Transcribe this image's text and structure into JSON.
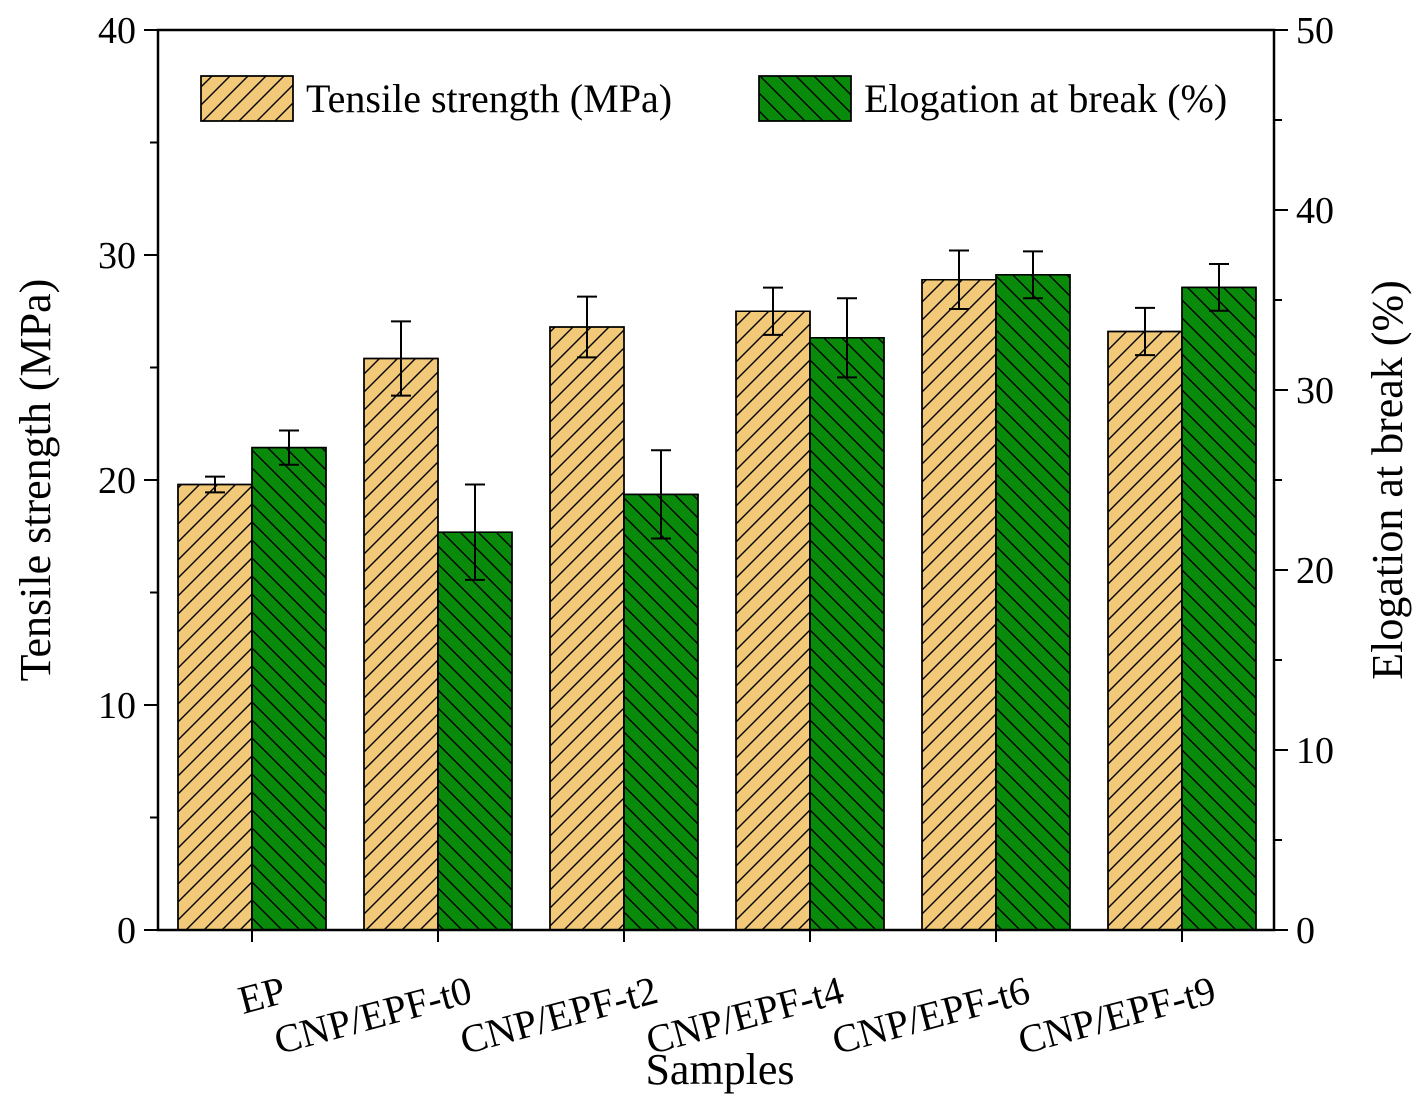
{
  "chart_data": {
    "type": "bar",
    "xlabel": "Samples",
    "ylabel_left": "Tensile strength (MPa)",
    "ylabel_right": "Elogation at break (%)",
    "categories": [
      "EP",
      "CNP/EPF-t0",
      "CNP/EPF-t2",
      "CNP/EPF-t4",
      "CNP/EPF-t6",
      "CNP/EPF-t9"
    ],
    "ylim_left": [
      0,
      40
    ],
    "ylim_right": [
      0,
      50
    ],
    "yticks_left": [
      "0",
      "10",
      "20",
      "30",
      "40"
    ],
    "yticks_right": [
      "0",
      "10",
      "20",
      "30",
      "40",
      "50"
    ],
    "legend_position": "top",
    "grid": false,
    "series": [
      {
        "name": "Tensile strength (MPa)",
        "axis": "left",
        "color": "#F2C879",
        "hatch": "forward-diagonal",
        "values": [
          19.8,
          25.4,
          26.8,
          27.5,
          28.9,
          26.6
        ],
        "errors": [
          0.35,
          1.65,
          1.35,
          1.05,
          1.3,
          1.05
        ]
      },
      {
        "name": "Elogation at break (%)",
        "axis": "right",
        "color": "#0A8A0A",
        "hatch": "backward-diagonal",
        "values": [
          26.8,
          22.1,
          24.2,
          32.9,
          36.4,
          35.7
        ],
        "errors": [
          0.95,
          2.65,
          2.45,
          2.2,
          1.3,
          1.3
        ]
      }
    ]
  }
}
